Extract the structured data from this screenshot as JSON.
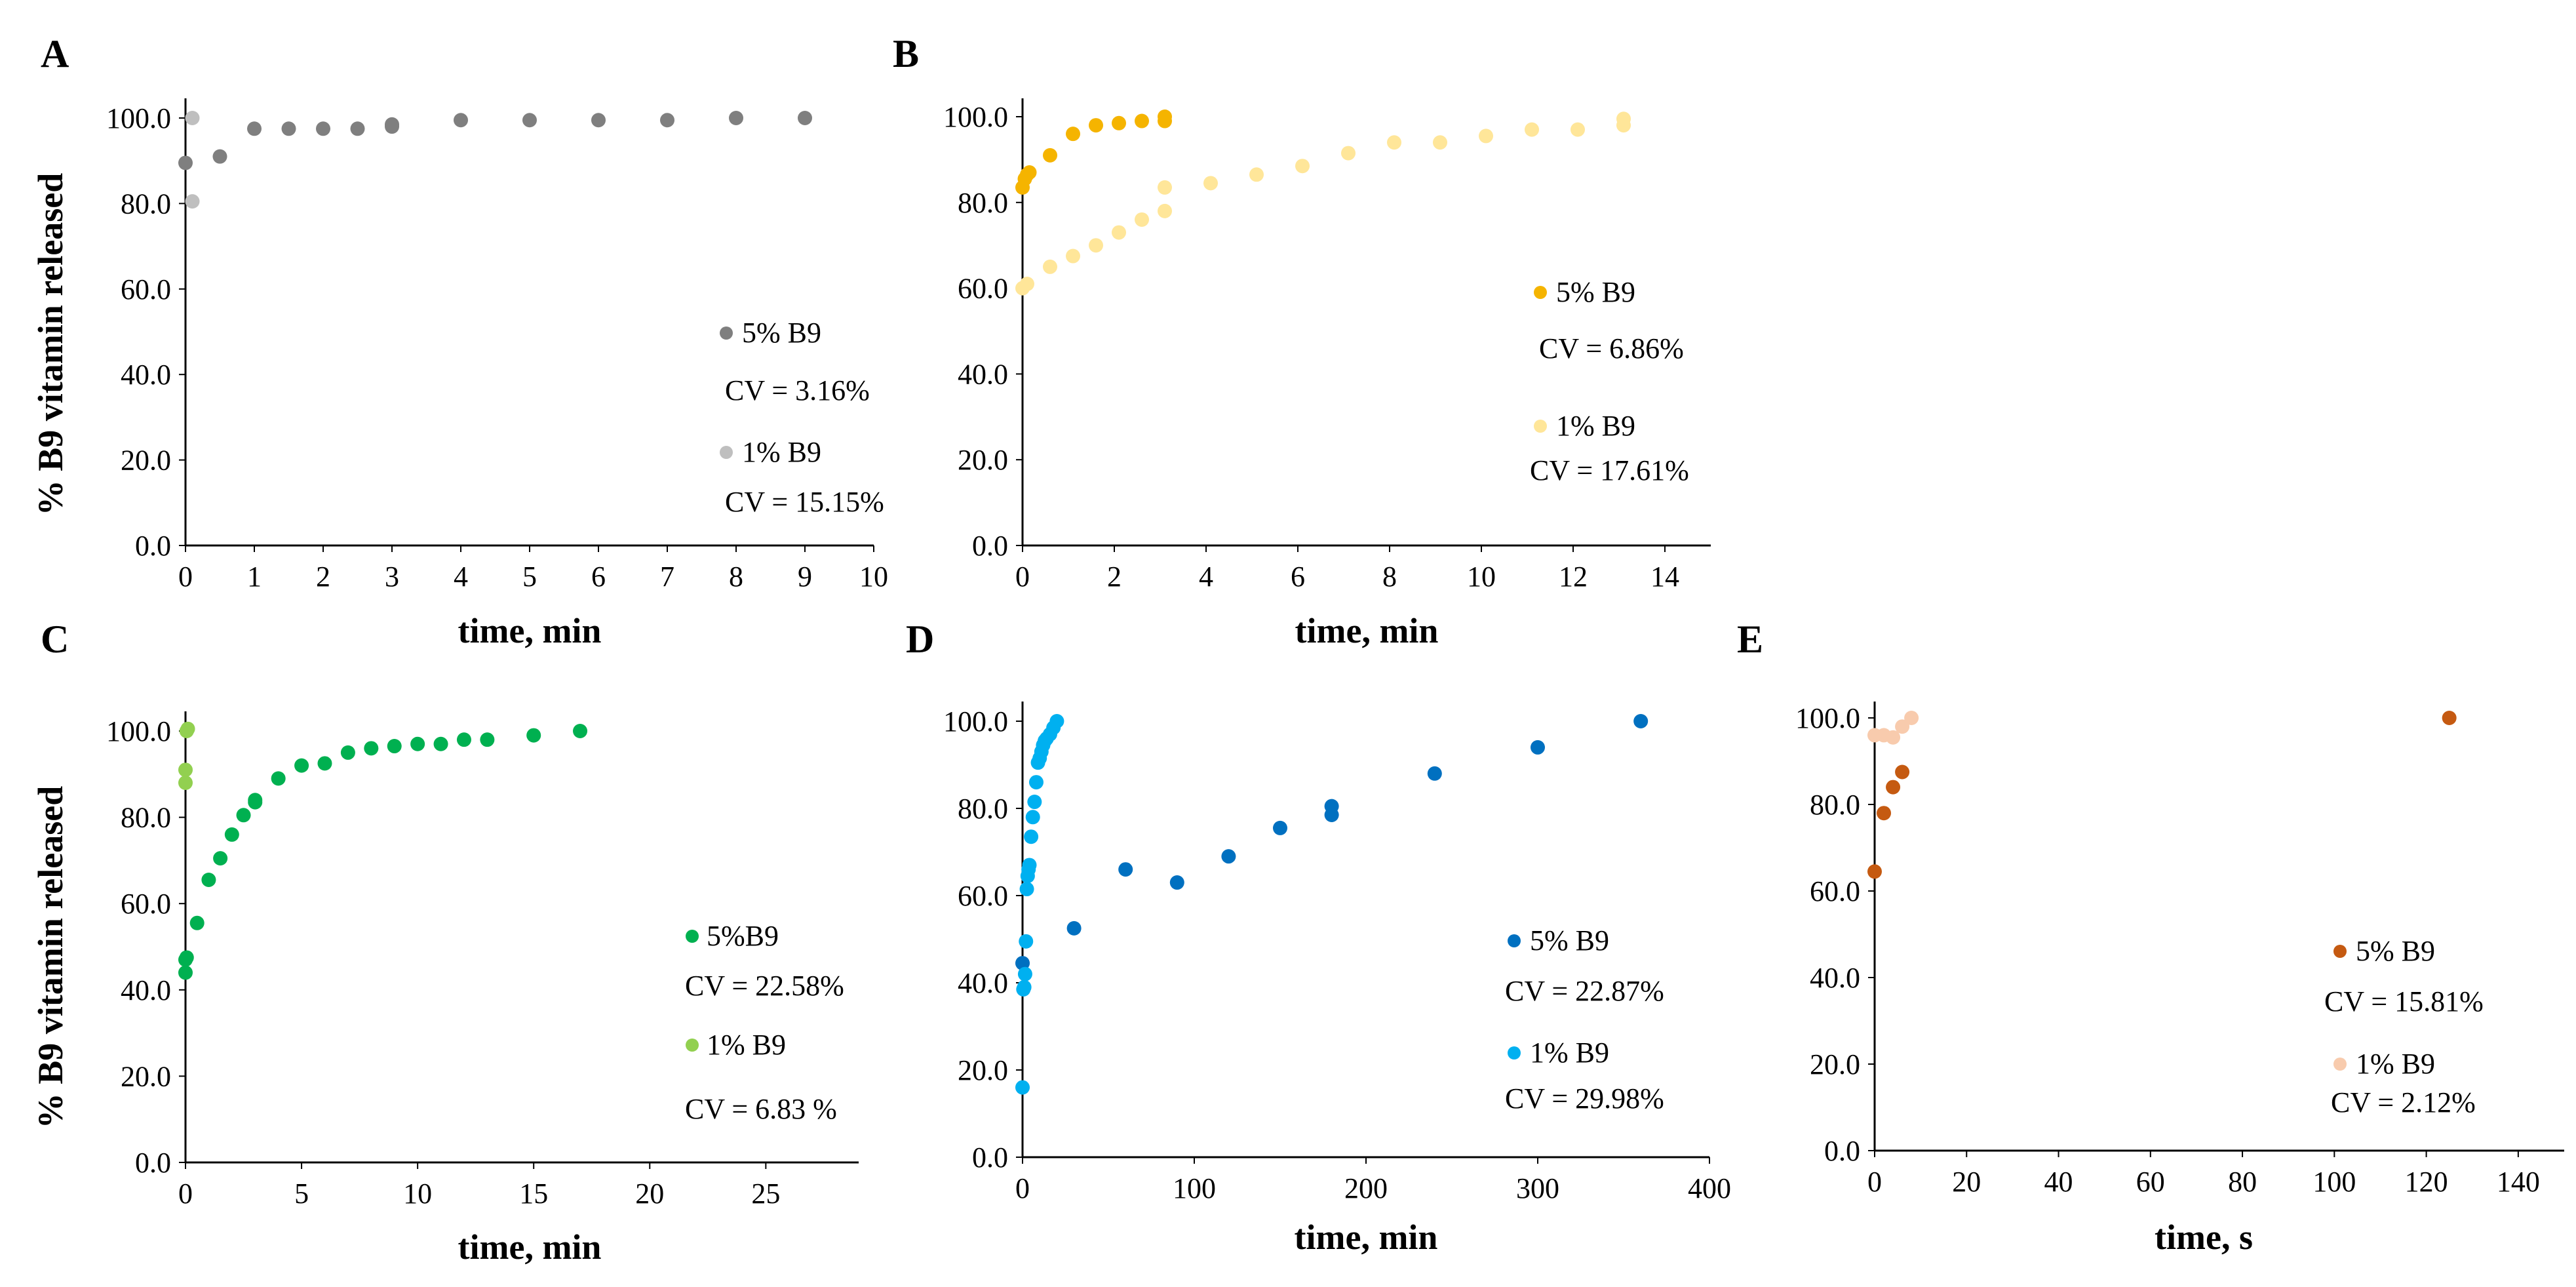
{
  "figure": {
    "ylabel_top": "% B9 vitamin released",
    "ylabel_bottom": "% B9 vitamin released"
  },
  "chart_data": [
    {
      "id": "A",
      "type": "scatter",
      "panel_label": "A",
      "xlabel": "time, min",
      "xlim": [
        0,
        10
      ],
      "xticks": [
        0,
        1,
        2,
        3,
        4,
        5,
        6,
        7,
        8,
        9,
        10
      ],
      "ylim": [
        0,
        100
      ],
      "yticks": [
        0,
        20,
        40,
        60,
        80,
        100
      ],
      "ytick_labels": [
        "0.0",
        "20.0",
        "40.0",
        "60.0",
        "80.0",
        "100.0"
      ],
      "series": [
        {
          "name": "5% B9",
          "cv": "CV = 3.16%",
          "color": "#7f7f7f",
          "x": [
            0,
            0.5,
            1,
            1.5,
            2,
            2.5,
            3,
            3,
            4,
            5,
            6,
            7,
            8,
            9
          ],
          "y": [
            89.5,
            91,
            97.5,
            97.5,
            97.5,
            97.5,
            98,
            98.5,
            99.5,
            99.5,
            99.5,
            99.5,
            100,
            100
          ]
        },
        {
          "name": "1% B9",
          "cv": "CV = 15.15%",
          "color": "#bfbfbf",
          "x": [
            0.1,
            0.1
          ],
          "y": [
            80.5,
            100
          ]
        }
      ]
    },
    {
      "id": "B",
      "type": "scatter",
      "panel_label": "B",
      "xlabel": "time, min",
      "xlim": [
        0,
        15
      ],
      "xticks": [
        0,
        2,
        4,
        6,
        8,
        10,
        12,
        14
      ],
      "ylim": [
        0,
        100
      ],
      "yticks": [
        0,
        20,
        40,
        60,
        80,
        100
      ],
      "ytick_labels": [
        "0.0",
        "20.0",
        "40.0",
        "60.0",
        "80.0",
        "100.0"
      ],
      "series": [
        {
          "name": "5% B9",
          "cv": "CV = 6.86%",
          "color": "#f5b400",
          "x": [
            0,
            0.05,
            0.1,
            0.15,
            0.6,
            1.1,
            1.6,
            2.1,
            2.6,
            3.1,
            3.1
          ],
          "y": [
            83.5,
            85.5,
            86.5,
            87,
            91,
            96,
            98,
            98.5,
            99,
            99,
            100
          ]
        },
        {
          "name": "1% B9",
          "cv": "CV = 17.61%",
          "color": "#ffe699",
          "x": [
            0,
            0.1,
            0.6,
            1.1,
            1.6,
            2.1,
            2.6,
            3.1,
            3.1,
            4.1,
            5.1,
            6.1,
            7.1,
            8.1,
            9.1,
            10.1,
            11.1,
            12.1,
            13.1,
            13.1
          ],
          "y": [
            60,
            61,
            65,
            67.5,
            70,
            73,
            76,
            78,
            83.5,
            84.5,
            86.5,
            88.5,
            91.5,
            94,
            94,
            95.5,
            97,
            97,
            98,
            99.5
          ]
        }
      ]
    },
    {
      "id": "C",
      "type": "scatter",
      "panel_label": "C",
      "xlabel": "time, min",
      "xlim": [
        0,
        29
      ],
      "xticks": [
        0,
        5,
        10,
        15,
        20,
        25
      ],
      "ylim": [
        0,
        100
      ],
      "yticks": [
        0,
        20,
        40,
        60,
        80,
        100
      ],
      "ytick_labels": [
        "0.0",
        "20.0",
        "40.0",
        "60.0",
        "80.0",
        "100.0"
      ],
      "series": [
        {
          "name": "5%B9",
          "cv": "CV = 22.58%",
          "color": "#00b050",
          "x": [
            0,
            0,
            0.05,
            0.5,
            1,
            1.5,
            2,
            2.5,
            3,
            3,
            4,
            5,
            6,
            7,
            8,
            9,
            10,
            11,
            12,
            13,
            15,
            17
          ],
          "y": [
            44,
            47,
            47.5,
            55.5,
            65.5,
            70.5,
            76,
            80.5,
            83.5,
            84,
            89,
            92,
            92.5,
            95,
            96,
            96.5,
            97,
            97,
            98,
            98,
            99,
            100
          ]
        },
        {
          "name": "1% B9",
          "cv": "CV = 6.83 %",
          "color": "#92d050",
          "x": [
            0,
            0,
            0.05,
            0.1
          ],
          "y": [
            88,
            91,
            100,
            100.5
          ]
        }
      ]
    },
    {
      "id": "D",
      "type": "scatter",
      "panel_label": "D",
      "xlabel": "time, min",
      "xlim": [
        0,
        400
      ],
      "xticks": [
        0,
        100,
        200,
        300,
        400
      ],
      "ylim": [
        0,
        100
      ],
      "yticks": [
        0,
        20,
        40,
        60,
        80,
        100
      ],
      "ytick_labels": [
        "0.0",
        "20.0",
        "40.0",
        "60.0",
        "80.0",
        "100.0"
      ],
      "series": [
        {
          "name": "5% B9",
          "cv": "CV = 22.87%",
          "color": "#0070c0",
          "x": [
            0,
            30,
            60,
            90,
            120,
            150,
            180,
            180,
            240,
            300,
            360
          ],
          "y": [
            44.5,
            52.5,
            66,
            63,
            69,
            75.5,
            78.5,
            80.5,
            88,
            94,
            100
          ]
        },
        {
          "name": "1% B9",
          "cv": "CV = 29.98%",
          "color": "#00b0f0",
          "x": [
            0,
            0.5,
            1,
            1.5,
            2,
            2.5,
            3,
            3.5,
            4,
            5,
            6,
            7,
            8,
            9,
            10,
            11,
            12,
            13,
            14,
            16,
            18,
            20
          ],
          "y": [
            16,
            38.5,
            39,
            42,
            49.5,
            61.5,
            64.5,
            66,
            67,
            73.5,
            78,
            81.5,
            86,
            90.5,
            91.5,
            93,
            94.5,
            95.5,
            96,
            97,
            98.5,
            100
          ]
        }
      ]
    },
    {
      "id": "E",
      "type": "scatter",
      "panel_label": "E",
      "xlabel": "time, s",
      "xlim": [
        0,
        150
      ],
      "xticks": [
        0,
        20,
        40,
        60,
        80,
        100,
        120,
        140
      ],
      "ylim": [
        0,
        100
      ],
      "yticks": [
        0,
        20,
        40,
        60,
        80,
        100
      ],
      "ytick_labels": [
        "0.0",
        "20.0",
        "40.0",
        "60.0",
        "80.0",
        "100.0"
      ],
      "series": [
        {
          "name": "5% B9",
          "cv": "CV = 15.81%",
          "color": "#c55a11",
          "x": [
            0,
            2,
            4,
            6,
            125
          ],
          "y": [
            64.5,
            78,
            84,
            87.5,
            100
          ]
        },
        {
          "name": "1% B9",
          "cv": "CV = 2.12%",
          "color": "#f8cbad",
          "x": [
            0,
            2,
            4,
            6,
            8
          ],
          "y": [
            96,
            96,
            95.5,
            98,
            100
          ]
        }
      ]
    }
  ]
}
